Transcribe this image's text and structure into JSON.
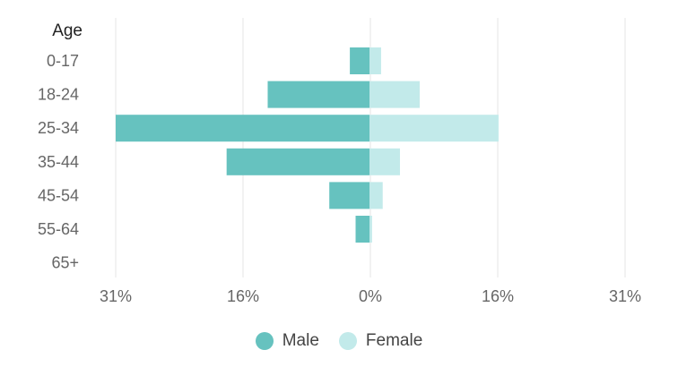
{
  "chart_data": {
    "type": "bar",
    "orientation": "horizontal",
    "layout": "population-pyramid",
    "ylabel": "Age",
    "categories": [
      "0-17",
      "18-24",
      "25-34",
      "35-44",
      "45-54",
      "55-64",
      "65+"
    ],
    "series": [
      {
        "name": "Male",
        "values": [
          2.5,
          12.5,
          31,
          17.5,
          5,
          1.8,
          0
        ],
        "color": "#66c2bf"
      },
      {
        "name": "Female",
        "values": [
          1.3,
          6,
          15.6,
          3.6,
          1.5,
          0.2,
          0
        ],
        "color": "#c2eaea"
      }
    ],
    "x_ticks": [
      {
        "value": -31,
        "label": "31%"
      },
      {
        "value": -15.5,
        "label": "16%"
      },
      {
        "value": 0,
        "label": "0%"
      },
      {
        "value": 15.5,
        "label": "16%"
      },
      {
        "value": 31,
        "label": "31%"
      }
    ],
    "xlim": [
      -31,
      31
    ],
    "grid": "vertical",
    "legend_position": "bottom"
  }
}
